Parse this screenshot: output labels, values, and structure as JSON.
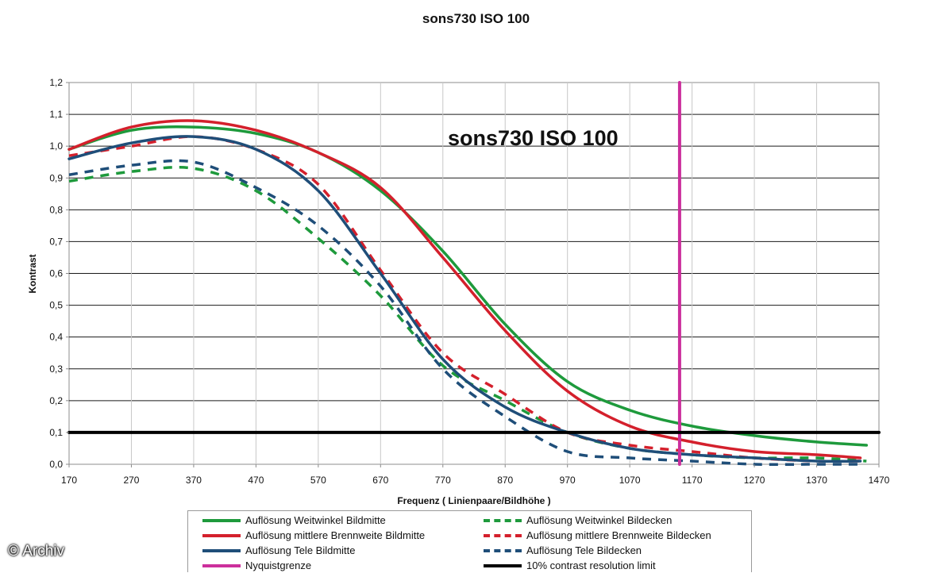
{
  "chart_data": {
    "type": "line",
    "title": "sons730 ISO 100",
    "inner_title": "sons730 ISO 100",
    "xlabel": "Frequenz ( Linienpaare/Bildhöhe )",
    "ylabel": "Kontrast",
    "xlim": [
      170,
      1470
    ],
    "ylim": [
      0,
      1.2
    ],
    "x_ticks": [
      "170",
      "270",
      "370",
      "470",
      "570",
      "670",
      "770",
      "870",
      "970",
      "1070",
      "1170",
      "1270",
      "1370",
      "1470"
    ],
    "y_ticks": [
      "0,0",
      "0,1",
      "0,2",
      "0,3",
      "0,4",
      "0,5",
      "0,6",
      "0,7",
      "0,8",
      "0,9",
      "1,0",
      "1,1",
      "1,2"
    ],
    "grid": "horizontal",
    "series": [
      {
        "name": "Auflösung Weitwinkel Bildmitte",
        "color": "#1e9a3c",
        "style": "solid",
        "x": [
          170,
          270,
          370,
          470,
          570,
          670,
          770,
          870,
          970,
          1070,
          1170,
          1270,
          1370,
          1450
        ],
        "y": [
          0.99,
          1.05,
          1.06,
          1.04,
          0.98,
          0.86,
          0.67,
          0.44,
          0.26,
          0.17,
          0.12,
          0.09,
          0.07,
          0.06
        ]
      },
      {
        "name": "Auflösung mittlere Brennweite Bildmitte",
        "color": "#d4202c",
        "style": "solid",
        "x": [
          170,
          270,
          370,
          470,
          570,
          670,
          770,
          870,
          970,
          1070,
          1170,
          1270,
          1370,
          1440
        ],
        "y": [
          0.99,
          1.06,
          1.08,
          1.05,
          0.98,
          0.87,
          0.65,
          0.42,
          0.23,
          0.12,
          0.07,
          0.04,
          0.03,
          0.02
        ]
      },
      {
        "name": "Auflösung Tele Bildmitte",
        "color": "#1f4e79",
        "style": "solid",
        "x": [
          170,
          270,
          370,
          470,
          570,
          670,
          770,
          870,
          970,
          1070,
          1170,
          1270,
          1370,
          1440
        ],
        "y": [
          0.96,
          1.01,
          1.03,
          0.99,
          0.86,
          0.6,
          0.33,
          0.18,
          0.1,
          0.05,
          0.03,
          0.02,
          0.01,
          0.01
        ]
      },
      {
        "name": "Nyquistgrenze",
        "color": "#cc2f9c",
        "style": "solid",
        "x": [
          1150,
          1150
        ],
        "y": [
          0,
          1.2
        ]
      },
      {
        "name": "Auflösung Weitwinkel Bildecken",
        "color": "#1e9a3c",
        "style": "dashed",
        "x": [
          170,
          270,
          370,
          470,
          570,
          670,
          770,
          870,
          970,
          1070,
          1170,
          1270,
          1370,
          1450
        ],
        "y": [
          0.89,
          0.92,
          0.93,
          0.86,
          0.71,
          0.53,
          0.31,
          0.2,
          0.1,
          0.05,
          0.03,
          0.02,
          0.02,
          0.01
        ]
      },
      {
        "name": "Auflösung mittlere Brennweite Bildecken",
        "color": "#d4202c",
        "style": "dashed",
        "x": [
          170,
          270,
          370,
          470,
          570,
          670,
          770,
          870,
          970,
          1070,
          1170,
          1270,
          1370,
          1440
        ],
        "y": [
          0.97,
          1.0,
          1.03,
          0.99,
          0.88,
          0.61,
          0.35,
          0.22,
          0.1,
          0.06,
          0.04,
          0.02,
          0.01,
          0.01
        ]
      },
      {
        "name": "Auflösung Tele Bildecken",
        "color": "#1f4e79",
        "style": "dashed",
        "x": [
          170,
          270,
          370,
          470,
          570,
          670,
          770,
          870,
          970,
          1070,
          1170,
          1270,
          1370,
          1440
        ],
        "y": [
          0.91,
          0.94,
          0.95,
          0.87,
          0.75,
          0.56,
          0.3,
          0.15,
          0.04,
          0.02,
          0.01,
          0.0,
          0.0,
          0.0
        ]
      },
      {
        "name": "10% contrast resolution limit",
        "color": "#000000",
        "style": "solid",
        "x": [
          170,
          1470
        ],
        "y": [
          0.1,
          0.1
        ]
      }
    ]
  },
  "watermark": "© Archiv"
}
